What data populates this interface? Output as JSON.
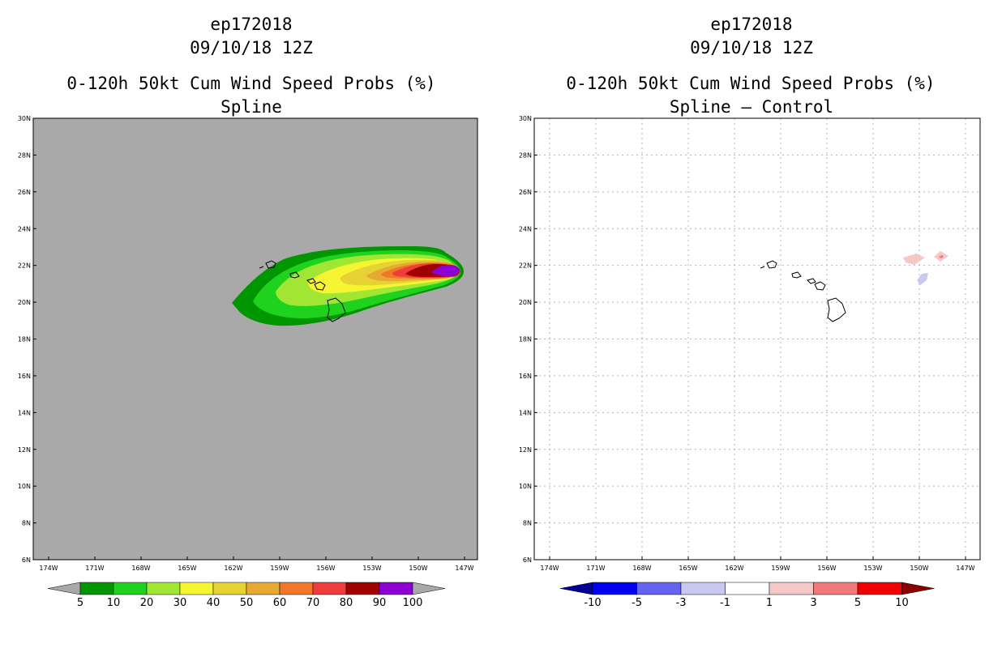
{
  "left_panel": {
    "storm_id": "ep172018",
    "datetime": "09/10/18 12Z",
    "product": "0-120h 50kt Cum Wind Speed Probs (%)",
    "subtitle": "Spline"
  },
  "right_panel": {
    "storm_id": "ep172018",
    "datetime": "09/10/18 12Z",
    "product": "0-120h 50kt Cum Wind Speed Probs (%)",
    "subtitle": "Spline – Control"
  },
  "map": {
    "lat_labels": [
      "6N",
      "8N",
      "10N",
      "12N",
      "14N",
      "16N",
      "18N",
      "20N",
      "22N",
      "24N",
      "26N",
      "28N",
      "30N"
    ],
    "lon_labels": [
      "174W",
      "171W",
      "168W",
      "165W",
      "162W",
      "159W",
      "156W",
      "153W",
      "150W",
      "147W"
    ],
    "left_background": "#a9a9a9",
    "right_background": "#ffffff"
  },
  "left_colorbar": {
    "labels": [
      "5",
      "10",
      "20",
      "30",
      "40",
      "50",
      "60",
      "70",
      "80",
      "90",
      "100"
    ],
    "colors": [
      "#009600",
      "#1ed21e",
      "#a0e632",
      "#f5f532",
      "#e6d232",
      "#e6aa32",
      "#f07828",
      "#f03c3c",
      "#a00000",
      "#8c00d2"
    ],
    "end_color": "#a9a9a9"
  },
  "right_colorbar": {
    "labels": [
      "-10",
      "-5",
      "-3",
      "-1",
      "1",
      "3",
      "5",
      "10"
    ],
    "colors": [
      "#0000f0",
      "#6464f0",
      "#c8c8f0",
      "#ffffff",
      "#f5c8c8",
      "#f07878",
      "#f00000"
    ],
    "low_end_color": "#000096",
    "high_end_color": "#8c0000"
  }
}
